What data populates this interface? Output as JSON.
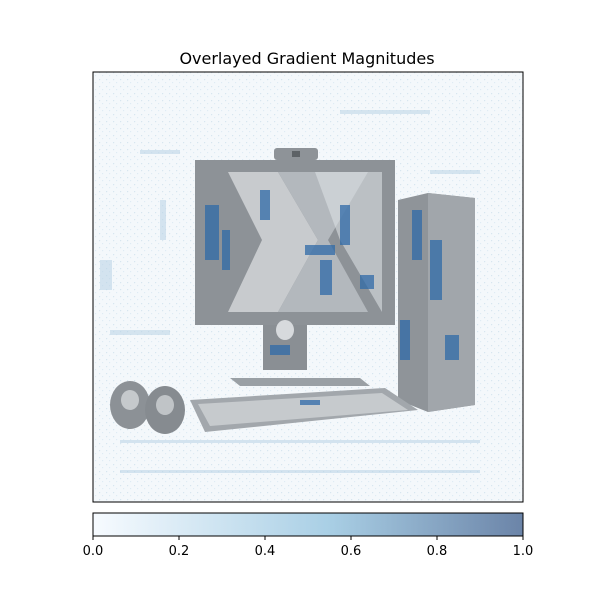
{
  "chart_data": {
    "type": "heatmap",
    "title": "Overlayed Gradient Magnitudes",
    "xlabel": "",
    "ylabel": "",
    "axes_ticks": "none",
    "image_description_shown": "greyscale desktop computer (monitor with webcam, tower, keyboard, two speakers) overlaid with blue gradient-magnitude heatmap",
    "colorbar": {
      "orientation": "horizontal",
      "cmap": "Blues",
      "range": [
        0.0,
        1.0
      ],
      "ticks": [
        0.0,
        0.2,
        0.4,
        0.6,
        0.8,
        1.0
      ],
      "tick_labels": [
        "0.0",
        "0.2",
        "0.4",
        "0.6",
        "0.8",
        "1.0"
      ],
      "color_low": "#f7fbff",
      "color_mid": "#a9cfe5",
      "color_high": "#6b84a8"
    }
  }
}
